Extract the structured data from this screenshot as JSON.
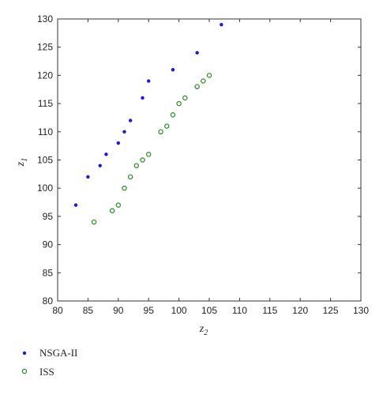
{
  "chart_data": {
    "type": "scatter",
    "xlabel_main": "z",
    "xlabel_sub": "2",
    "ylabel_main": "z",
    "ylabel_sub": "1",
    "xlim": [
      80,
      130
    ],
    "ylim": [
      80,
      130
    ],
    "xticks": [
      80,
      85,
      90,
      95,
      100,
      105,
      110,
      115,
      120,
      125,
      130
    ],
    "yticks": [
      80,
      85,
      90,
      95,
      100,
      105,
      110,
      115,
      120,
      125,
      130
    ],
    "grid": false,
    "legend_position": "below",
    "series": [
      {
        "name": "NSGA-II",
        "marker": "filled-dot",
        "color": "#1a1ad0",
        "points": [
          [
            83,
            97
          ],
          [
            85,
            102
          ],
          [
            87,
            104
          ],
          [
            88,
            106
          ],
          [
            90,
            108
          ],
          [
            91,
            110
          ],
          [
            92,
            112
          ],
          [
            94,
            116
          ],
          [
            95,
            119
          ],
          [
            99,
            121
          ],
          [
            103,
            124
          ],
          [
            107,
            129
          ]
        ]
      },
      {
        "name": "ISS",
        "marker": "open-circle",
        "color": "#1f8a1f",
        "points": [
          [
            86,
            94
          ],
          [
            89,
            96
          ],
          [
            90,
            97
          ],
          [
            91,
            100
          ],
          [
            92,
            102
          ],
          [
            93,
            104
          ],
          [
            94,
            105
          ],
          [
            95,
            106
          ],
          [
            97,
            110
          ],
          [
            98,
            111
          ],
          [
            99,
            113
          ],
          [
            100,
            115
          ],
          [
            101,
            116
          ],
          [
            103,
            118
          ],
          [
            104,
            119
          ],
          [
            105,
            120
          ]
        ]
      }
    ]
  }
}
